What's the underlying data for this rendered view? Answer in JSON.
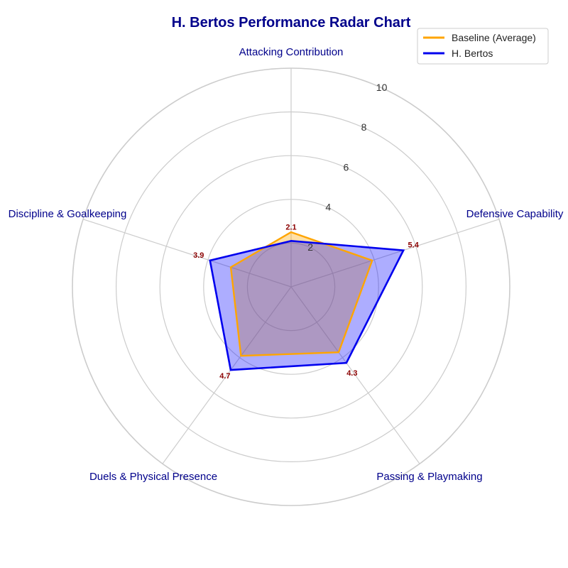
{
  "chart_data": {
    "type": "radar",
    "title": "H. Bertos Performance Radar Chart",
    "axes": [
      "Attacking Contribution",
      "Defensive Capability",
      "Passing & Playmaking",
      "Duels & Physical Presence",
      "Discipline & Goalkeeping"
    ],
    "rlim": [
      0,
      10
    ],
    "r_ticks": [
      "2",
      "4",
      "6",
      "8",
      "10"
    ],
    "r_tick_values": [
      2,
      4,
      6,
      8,
      10
    ],
    "grid": true,
    "legend_position": "top-right",
    "series": [
      {
        "name": "Baseline (Average)",
        "values": [
          2.5,
          3.9,
          3.7,
          3.9,
          2.9
        ],
        "color": "#ffa500",
        "fill": "#ffa500"
      },
      {
        "name": "H. Bertos",
        "values": [
          2.1,
          5.4,
          4.3,
          4.7,
          3.9
        ],
        "color": "#0000ee",
        "fill": "#0000ff",
        "data_labels": [
          "2.1",
          "5.4",
          "4.3",
          "4.7",
          "3.9"
        ]
      }
    ],
    "colors": {
      "title": "#00008b",
      "axis_label": "#00008b",
      "data_label": "#8b0000",
      "grid": "#cccccc"
    }
  }
}
